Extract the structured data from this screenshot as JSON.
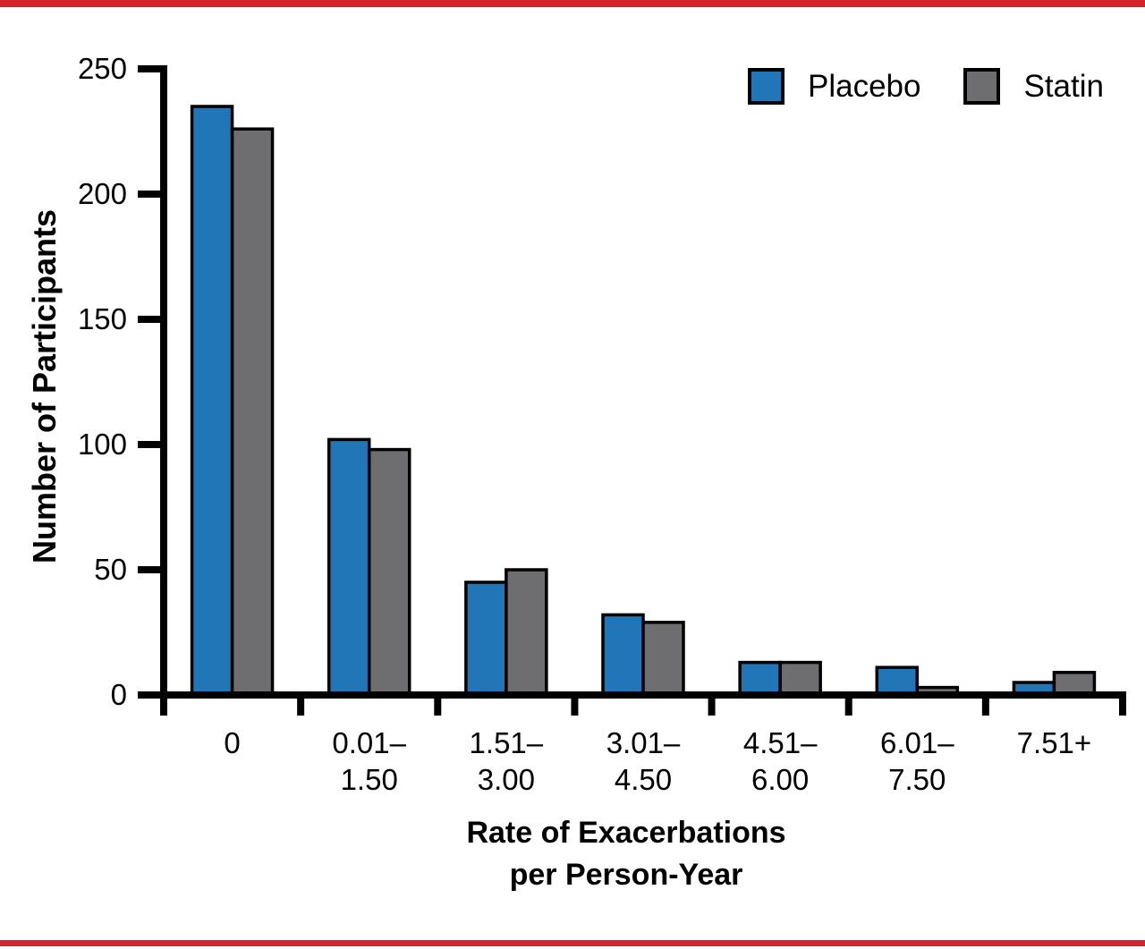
{
  "figure": {
    "accent_rule_color": "#d5232c",
    "background_color": "#ffffff",
    "axis_color": "#000000"
  },
  "legend": {
    "items": [
      {
        "label": "Placebo",
        "color": "#2176b7"
      },
      {
        "label": "Statin",
        "color": "#6e6e70"
      }
    ]
  },
  "chart_data": {
    "type": "bar",
    "title": "",
    "xlabel": "Rate of Exacerbations per Person-Year",
    "xlabel_lines": [
      "Rate of Exacerbations",
      "per Person-Year"
    ],
    "ylabel": "Number of Participants",
    "categories": [
      "0",
      "0.01–1.50",
      "1.51–3.00",
      "3.01–4.50",
      "4.51–6.00",
      "6.01–7.50",
      "7.51+"
    ],
    "category_labels": [
      [
        "0"
      ],
      [
        "0.01–",
        "1.50"
      ],
      [
        "1.51–",
        "3.00"
      ],
      [
        "3.01–",
        "4.50"
      ],
      [
        "4.51–",
        "6.00"
      ],
      [
        "6.01–",
        "7.50"
      ],
      [
        "7.51+"
      ]
    ],
    "series": [
      {
        "name": "Placebo",
        "color": "#2176b7",
        "values": [
          235,
          102,
          45,
          32,
          13,
          11,
          5
        ]
      },
      {
        "name": "Statin",
        "color": "#6e6e70",
        "values": [
          226,
          98,
          50,
          29,
          13,
          3,
          9
        ]
      }
    ],
    "ylim": [
      0,
      250
    ],
    "yticks": [
      0,
      50,
      100,
      150,
      200,
      250
    ],
    "grid": false,
    "legend_position": "top-right"
  }
}
